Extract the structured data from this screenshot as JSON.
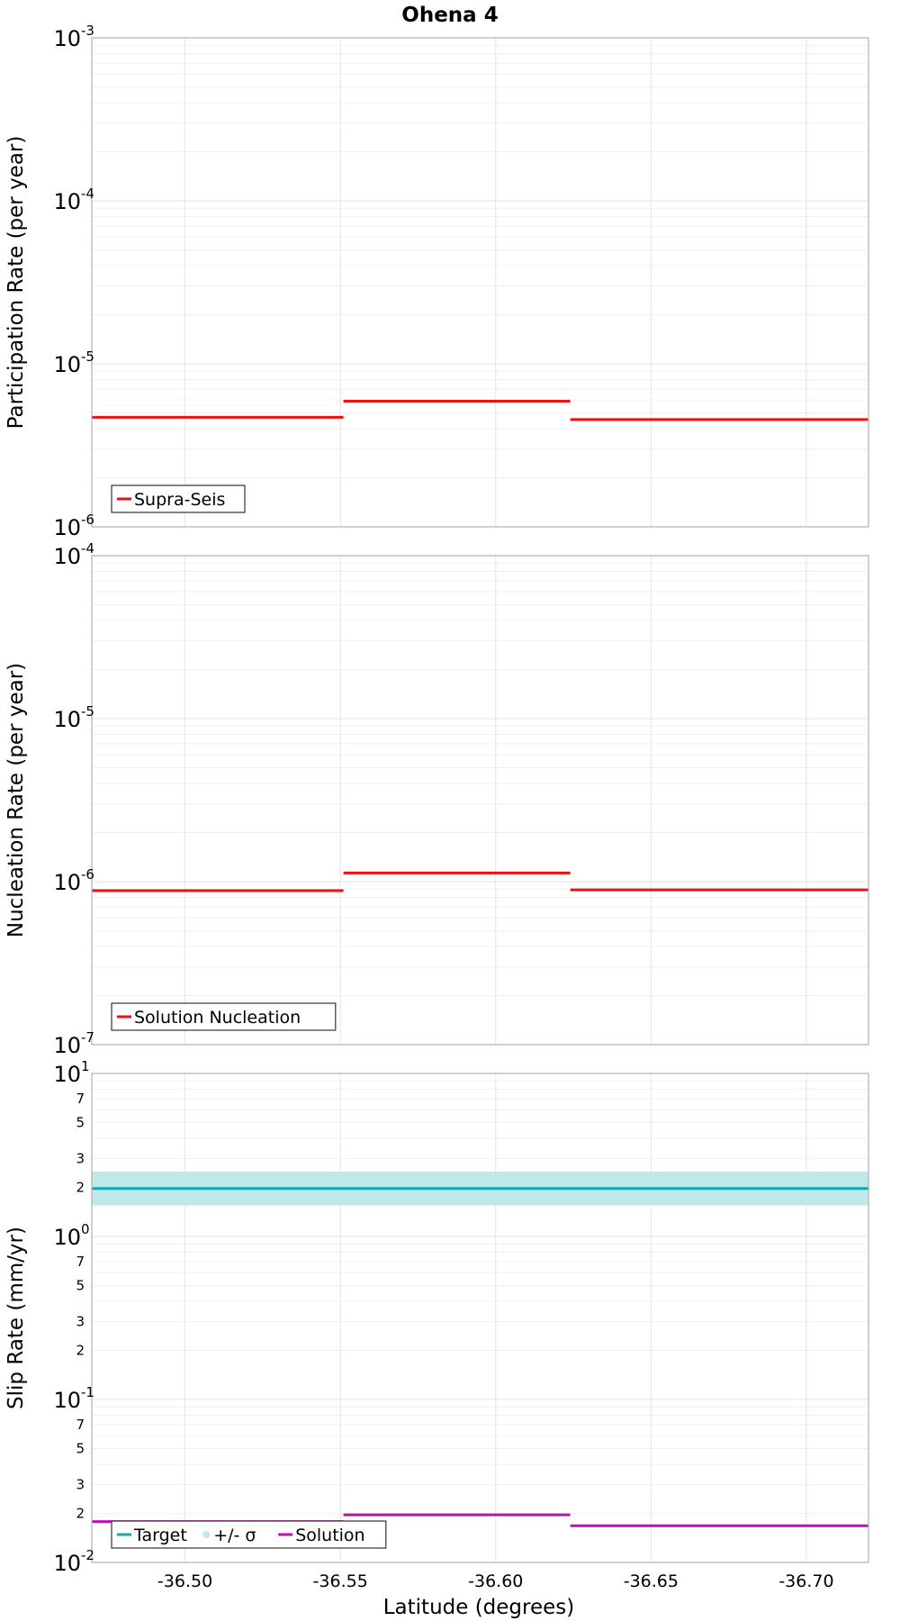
{
  "chart_data": {
    "title": "Ohena 4",
    "xlabel": "Latitude (degrees)",
    "xlim": [
      -36.47,
      -36.72
    ],
    "x_ticks": [
      "-36.50",
      "-36.55",
      "-36.60",
      "-36.65",
      "-36.70"
    ],
    "x_tick_values": [
      -36.5,
      -36.55,
      -36.6,
      -36.65,
      -36.7
    ],
    "panels": [
      {
        "type": "line",
        "ylabel": "Participation Rate (per year)",
        "yscale": "log",
        "ylim": [
          1e-06,
          0.001
        ],
        "major_ticks": [
          {
            "base": "10",
            "exp": "-6"
          },
          {
            "base": "10",
            "exp": "-5"
          },
          {
            "base": "10",
            "exp": "-4"
          },
          {
            "base": "10",
            "exp": "-3"
          }
        ],
        "minor_labels": [],
        "legend": [
          {
            "label": "Supra-Seis",
            "color": "#ee1111",
            "kind": "line"
          }
        ],
        "series": [
          {
            "name": "Supra-Seis",
            "color": "#ee1111",
            "segments": [
              {
                "x0": -36.47,
                "x1": -36.551,
                "y": 4.7e-06
              },
              {
                "x0": -36.551,
                "x1": -36.624,
                "y": 5.9e-06
              },
              {
                "x0": -36.624,
                "x1": -36.72,
                "y": 4.55e-06
              }
            ]
          }
        ]
      },
      {
        "type": "line",
        "ylabel": "Nucleation Rate (per year)",
        "yscale": "log",
        "ylim": [
          1e-07,
          0.0001
        ],
        "major_ticks": [
          {
            "base": "10",
            "exp": "-7"
          },
          {
            "base": "10",
            "exp": "-6"
          },
          {
            "base": "10",
            "exp": "-5"
          },
          {
            "base": "10",
            "exp": "-4"
          }
        ],
        "minor_labels": [],
        "legend": [
          {
            "label": "Solution Nucleation",
            "color": "#ee1111",
            "kind": "line"
          }
        ],
        "series": [
          {
            "name": "Solution Nucleation",
            "color": "#ee1111",
            "segments": [
              {
                "x0": -36.47,
                "x1": -36.551,
                "y": 8.8e-07
              },
              {
                "x0": -36.551,
                "x1": -36.624,
                "y": 1.13e-06
              },
              {
                "x0": -36.624,
                "x1": -36.72,
                "y": 8.9e-07
              }
            ]
          }
        ]
      },
      {
        "type": "line",
        "ylabel": "Slip Rate (mm/yr)",
        "yscale": "log",
        "ylim": [
          0.01,
          10
        ],
        "major_ticks": [
          {
            "base": "10",
            "exp": "-2"
          },
          {
            "base": "10",
            "exp": "-1"
          },
          {
            "base": "10",
            "exp": "0"
          },
          {
            "base": "10",
            "exp": "1"
          }
        ],
        "minor_labels": [
          {
            "value": 0.02,
            "label": "2"
          },
          {
            "value": 0.03,
            "label": "3"
          },
          {
            "value": 0.05,
            "label": "5"
          },
          {
            "value": 0.07,
            "label": "7"
          },
          {
            "value": 0.2,
            "label": "2"
          },
          {
            "value": 0.3,
            "label": "3"
          },
          {
            "value": 0.5,
            "label": "5"
          },
          {
            "value": 0.7,
            "label": "7"
          },
          {
            "value": 2,
            "label": "2"
          },
          {
            "value": 3,
            "label": "3"
          },
          {
            "value": 5,
            "label": "5"
          },
          {
            "value": 7,
            "label": "7"
          }
        ],
        "legend": [
          {
            "label": "Target",
            "color": "#11aaaa",
            "kind": "line"
          },
          {
            "label": "+/- σ",
            "color": "#bfe9e9",
            "kind": "dot"
          },
          {
            "label": "Solution",
            "color": "#bb11bb",
            "kind": "line"
          }
        ],
        "band": {
          "name": "+/- σ",
          "color": "#bfe9e9",
          "y0": 1.55,
          "y1": 2.5
        },
        "series": [
          {
            "name": "Target",
            "color": "#11aaaa",
            "segments": [
              {
                "x0": -36.47,
                "x1": -36.72,
                "y": 1.97
              }
            ]
          },
          {
            "name": "Solution",
            "color": "#bb11bb",
            "segments": [
              {
                "x0": -36.47,
                "x1": -36.551,
                "y": 0.0178
              },
              {
                "x0": -36.551,
                "x1": -36.624,
                "y": 0.0196
              },
              {
                "x0": -36.624,
                "x1": -36.72,
                "y": 0.0168
              }
            ]
          }
        ]
      }
    ]
  }
}
